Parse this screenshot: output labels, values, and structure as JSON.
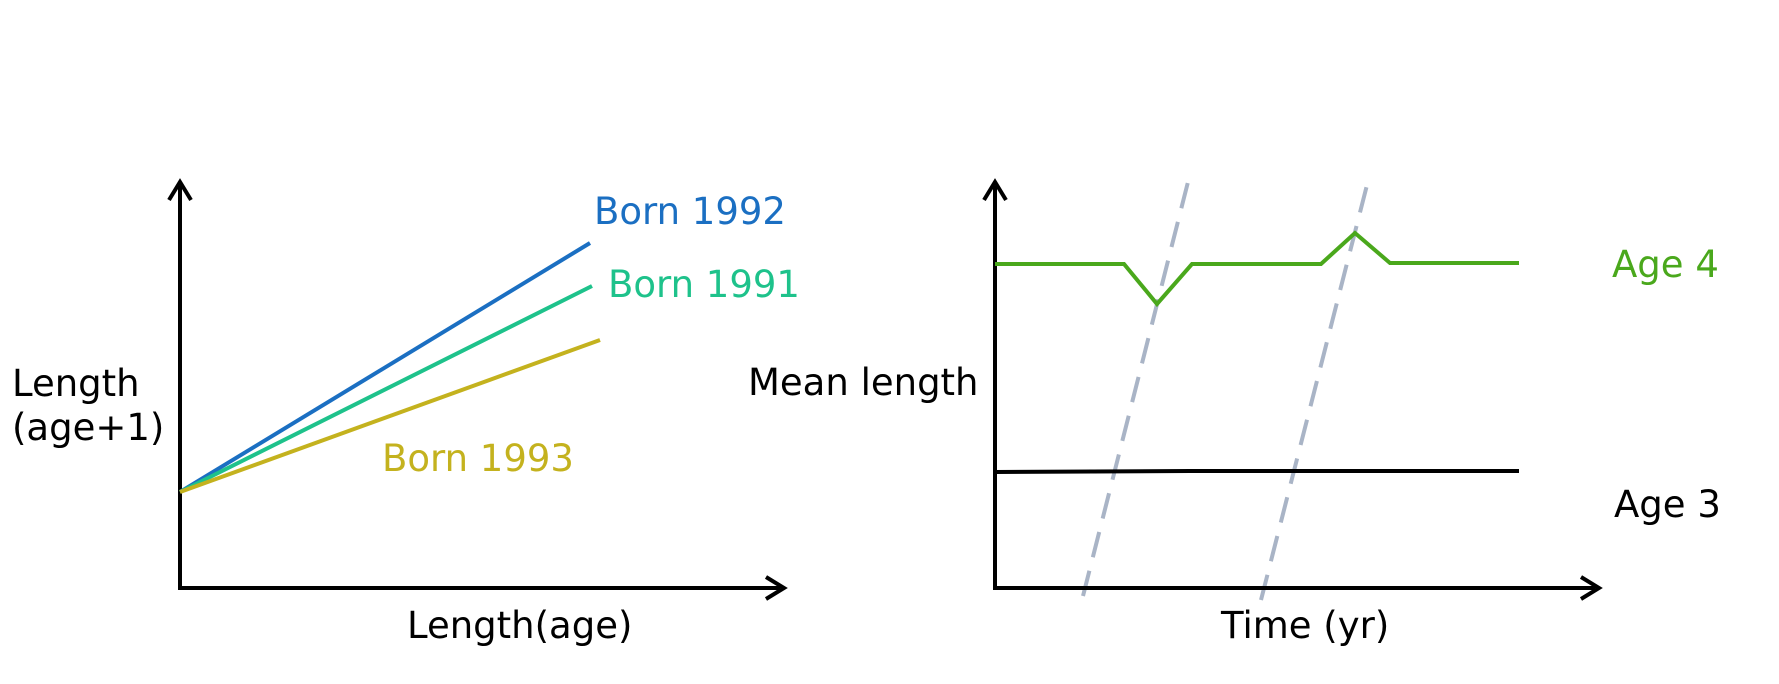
{
  "left_panel": {
    "y_axis_label_line1": "Length",
    "y_axis_label_line2": "(age+1)",
    "x_axis_label": "Length(age)",
    "series": [
      {
        "name": "Born 1992",
        "color": "#1b6fc2"
      },
      {
        "name": "Born 1991",
        "color": "#1ec28b"
      },
      {
        "name": "Born 1993",
        "color": "#c4b21e"
      }
    ]
  },
  "right_panel": {
    "y_axis_label": "Mean length",
    "x_axis_label": "Time (yr)",
    "series": [
      {
        "name": "Age 4",
        "color": "#4aa81c"
      },
      {
        "name": "Age 3",
        "color": "#000000"
      }
    ],
    "cohort_line_color": "#a9b4c6"
  },
  "colors": {
    "axis": "#000000",
    "background": "#ffffff"
  },
  "icons": [
    "arrow-up-icon",
    "arrow-right-icon"
  ]
}
